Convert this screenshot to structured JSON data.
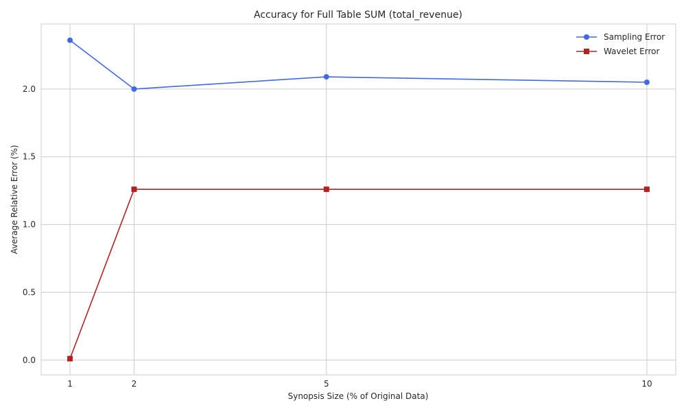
{
  "chart_data": {
    "type": "line",
    "title": "Accuracy for Full Table SUM (total_revenue)",
    "xlabel": "Synopsis Size (% of Original Data)",
    "ylabel": "Average Relative Error (%)",
    "x": [
      1,
      2,
      5,
      10
    ],
    "x_tick_labels": [
      "1",
      "2",
      "5",
      "10"
    ],
    "xlim": [
      0.55,
      10.45
    ],
    "ylim": [
      -0.11,
      2.48
    ],
    "y_ticks": [
      0.0,
      0.5,
      1.0,
      1.5,
      2.0
    ],
    "y_tick_labels": [
      "0.0",
      "0.5",
      "1.0",
      "1.5",
      "2.0"
    ],
    "grid": true,
    "legend_position": "top-right",
    "series": [
      {
        "name": "Sampling Error",
        "values": [
          2.36,
          2.0,
          2.09,
          2.05
        ],
        "color": "#4169e1",
        "marker": "circle"
      },
      {
        "name": "Wavelet Error",
        "values": [
          0.01,
          1.26,
          1.26,
          1.26
        ],
        "color": "#b22222",
        "marker": "square"
      }
    ]
  }
}
